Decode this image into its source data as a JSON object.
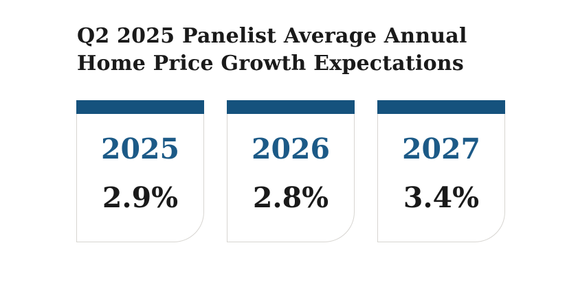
{
  "title": {
    "line1": "Q2 2025 Panelist Average Annual",
    "line2": "Home Price Growth Expectations"
  },
  "cards": [
    {
      "year": "2025",
      "value": "2.9%"
    },
    {
      "year": "2026",
      "value": "2.8%"
    },
    {
      "year": "2027",
      "value": "3.4%"
    }
  ],
  "colors": {
    "accent_blue_bar": "#15527d",
    "year_text_blue": "#1c5a87",
    "dark_text": "#1a1a1a",
    "card_border": "#d7d5d1",
    "background": "#ffffff"
  },
  "chart_data": {
    "type": "table",
    "title": "Q2 2025 Panelist Average Annual Home Price Growth Expectations",
    "categories": [
      "2025",
      "2026",
      "2027"
    ],
    "values": [
      2.9,
      2.8,
      3.4
    ],
    "unit": "%",
    "series": [
      {
        "name": "Average annual home price growth expectation",
        "values": [
          2.9,
          2.8,
          3.4
        ]
      }
    ],
    "layout": "three stat cards in a horizontal row, blue top bar, year in blue, value in black"
  }
}
